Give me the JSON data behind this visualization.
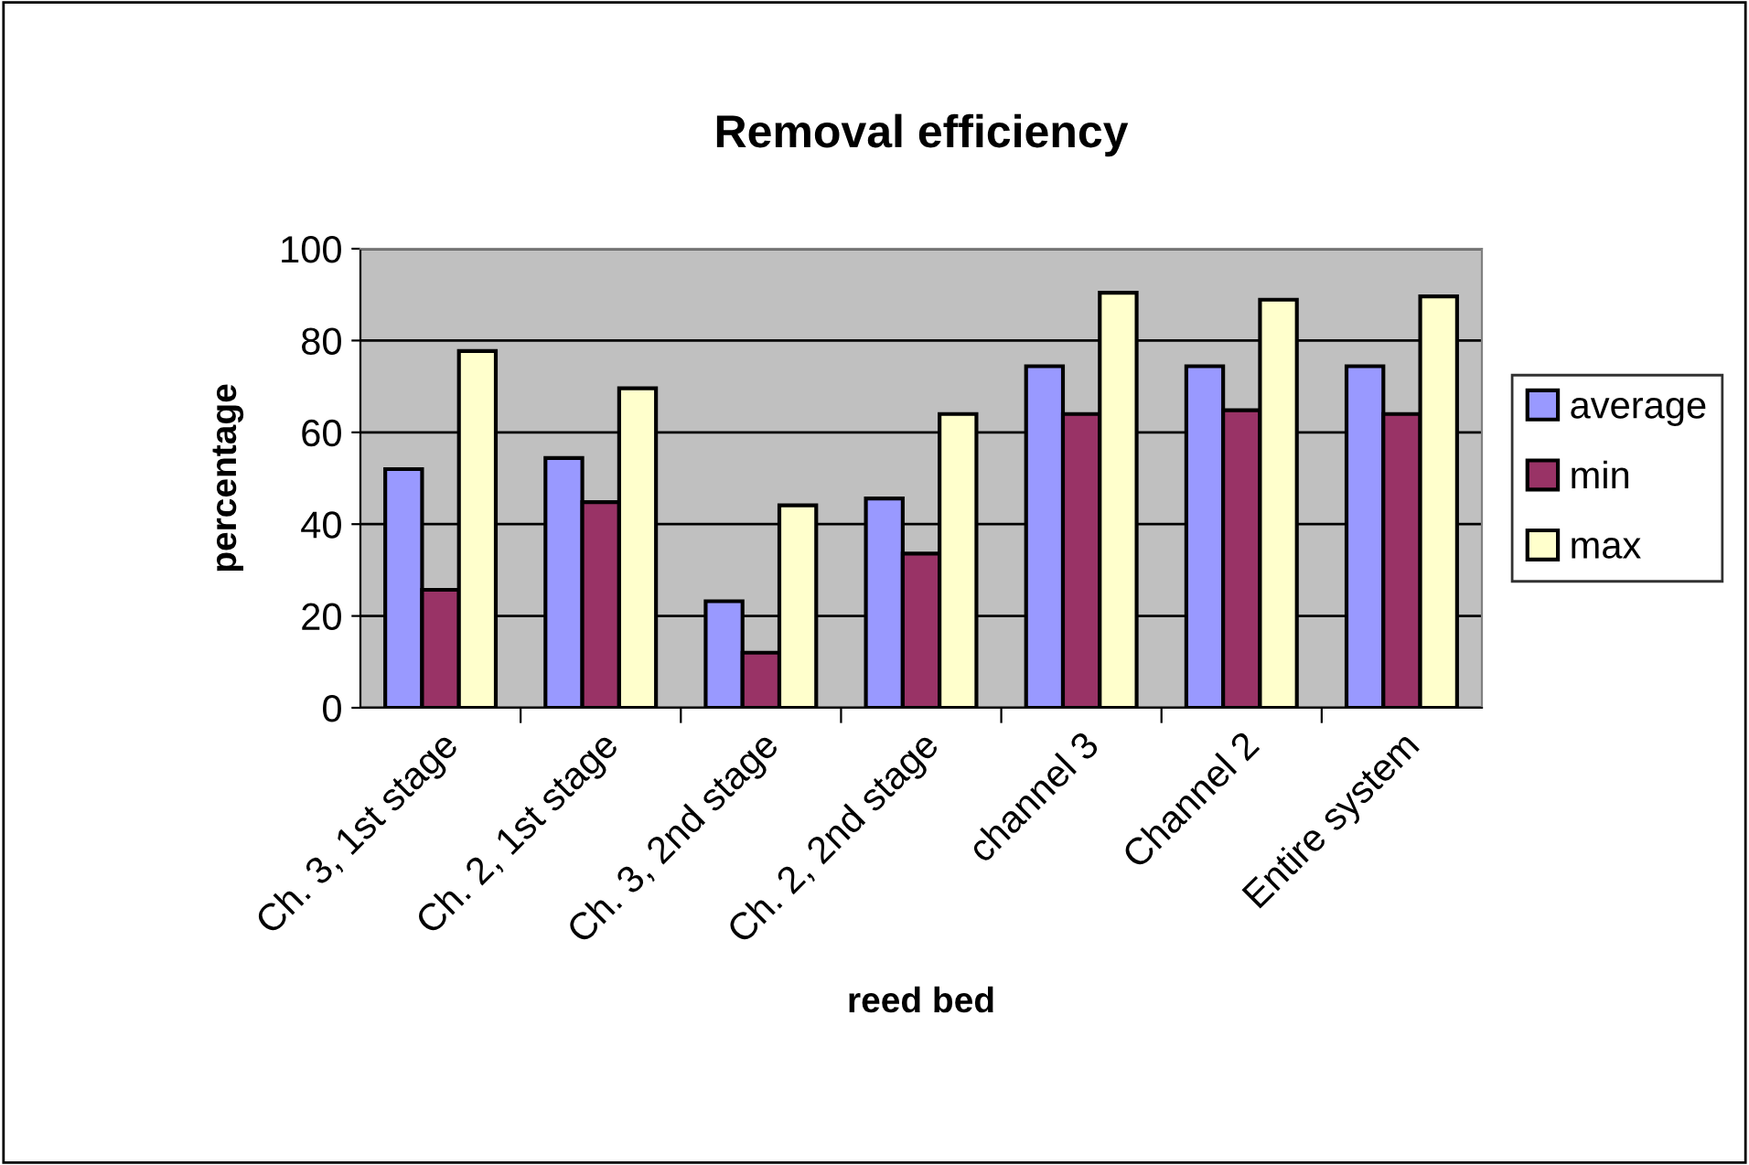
{
  "chart_data": {
    "type": "bar",
    "title": "Removal efficiency",
    "xlabel": "reed bed",
    "ylabel": "percentage",
    "categories": [
      "Ch. 3, 1st stage",
      "Ch. 2, 1st stage",
      "Ch. 3, 2nd stage",
      "Ch. 2, 2nd stage",
      "channel 3",
      "Channel 2",
      "Entire system"
    ],
    "series": [
      {
        "name": "average",
        "color": "#9999ff",
        "values": [
          52,
          54.4,
          23.2,
          45.6,
          74.4,
          74.4,
          74.4
        ]
      },
      {
        "name": "min",
        "color": "#993366",
        "values": [
          25.7,
          44.8,
          12,
          33.6,
          64,
          64.8,
          64
        ]
      },
      {
        "name": "max",
        "color": "#ffffcc",
        "values": [
          77.7,
          69.6,
          44.1,
          64,
          90.4,
          88.9,
          89.6
        ]
      }
    ],
    "ylim": [
      0,
      100
    ],
    "yticks": [
      0,
      20,
      40,
      60,
      80,
      100
    ],
    "grid": "y",
    "legend": "right"
  }
}
